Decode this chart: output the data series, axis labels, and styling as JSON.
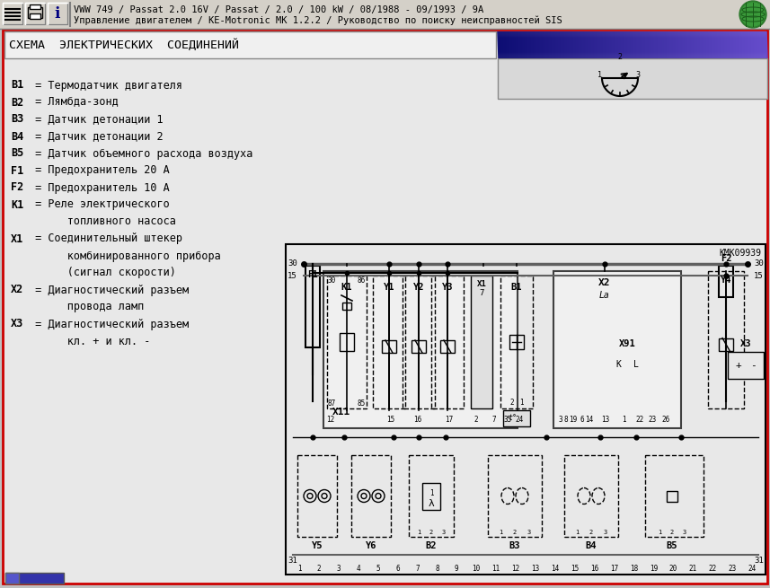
{
  "title_bar_text1": "VWW 749 / Passat 2.0 16V / Passat / 2.0 / 100 kW / 08/1988 - 09/1993 / 9A",
  "title_bar_text2": "Управление двигателем / KE-Motronic MK 1.2.2 / Руководство по поиску неисправностей SIS",
  "header_text": "СХЕМА  ЭЛЕКТРИЧЕСКИХ  СОЕДИНЕНИЙ",
  "legend_lines": [
    [
      "B1",
      " = Термодатчик двигателя"
    ],
    [
      "B2",
      " = Лямбда-зонд"
    ],
    [
      "B3",
      " = Датчик детонации 1"
    ],
    [
      "B4",
      " = Датчик детонации 2"
    ],
    [
      "B5",
      " = Датчик объемного расхода воздуха"
    ],
    [
      "F1",
      " = Предохранитель 20 А"
    ],
    [
      "F2",
      " = Предохранитель 10 А"
    ],
    [
      "K1",
      " = Реле электрического"
    ],
    [
      "",
      "      топливного насоса"
    ],
    [
      "X1",
      " = Соединительный штекер"
    ],
    [
      "",
      "      комбинированного прибора"
    ],
    [
      "",
      "      (сигнал скорости)"
    ],
    [
      "X2",
      " = Диагностический разъем"
    ],
    [
      "",
      "      провода ламп"
    ],
    [
      "X3",
      " = Диагностический разъем"
    ],
    [
      "",
      "      кл. + и кл. -"
    ]
  ],
  "bg_color": "#c0c0c0",
  "panel_bg": "#e8e8e8",
  "diag_bg": "#e8e8e8",
  "fig_width": 8.57,
  "fig_height": 6.55
}
